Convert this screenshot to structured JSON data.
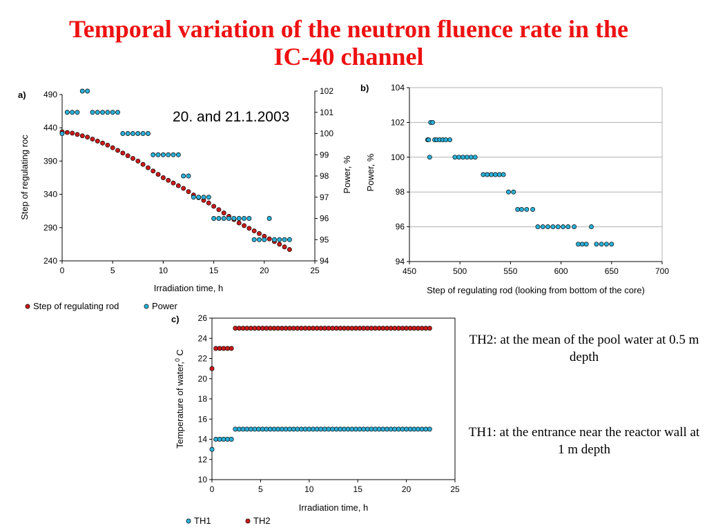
{
  "slide": {
    "title_line1": "Temporal variation of the neutron fluence rate in the",
    "title_line2": "IC-40 channel",
    "note_th2": "TH2: at the mean of the pool water at 0.5 m depth",
    "note_th1": "TH1: at the entrance near the reactor wall at 1 m depth"
  },
  "colors": {
    "red": "#cc1a1a",
    "blue": "#2bb0d8",
    "title": "#ee1111"
  },
  "chart_data": [
    {
      "id": "a",
      "panel_label": "a)",
      "type": "scatter",
      "annotation": "20. and 21.1.2003",
      "xlabel": "Irradiation time, h",
      "ylabel_left": "Step of regulating roc",
      "ylabel_right": "Power, %",
      "xlim": [
        0,
        25
      ],
      "ylim_left": [
        240,
        490
      ],
      "ylim_right": [
        94,
        102
      ],
      "xticks": [
        0,
        5,
        10,
        15,
        20,
        25
      ],
      "yticks_left": [
        240,
        290,
        340,
        390,
        440,
        490
      ],
      "yticks_right": [
        94,
        95,
        96,
        97,
        98,
        99,
        100,
        101,
        102
      ],
      "legend": [
        "Step of regulating rod",
        "Power"
      ],
      "legend_position": "bottom",
      "series": [
        {
          "name": "Step of regulating rod",
          "axis": "left",
          "color": "red",
          "x": [
            0,
            0.5,
            1,
            1.5,
            2,
            2.5,
            3,
            3.5,
            4,
            4.5,
            5,
            5.5,
            6,
            6.5,
            7,
            7.5,
            8,
            8.5,
            9,
            9.5,
            10,
            10.5,
            11,
            11.5,
            12,
            12.5,
            13,
            13.5,
            14,
            14.5,
            15,
            15.5,
            16,
            16.5,
            17,
            17.5,
            18,
            18.5,
            19,
            19.5,
            20,
            20.5,
            21,
            21.5,
            22,
            22.5
          ],
          "y": [
            434,
            433,
            432,
            430,
            428,
            426,
            423,
            420,
            417,
            414,
            410,
            406,
            402,
            398,
            394,
            390,
            385,
            380,
            375,
            370,
            365,
            361,
            357,
            353,
            349,
            344,
            339,
            335,
            331,
            327,
            322,
            317,
            312,
            307,
            302,
            297,
            293,
            289,
            285,
            281,
            277,
            273,
            269,
            265,
            261,
            257
          ]
        },
        {
          "name": "Power",
          "axis": "right",
          "color": "blue",
          "x": [
            0,
            0.5,
            1,
            1.5,
            2,
            2.5,
            3,
            3.5,
            4,
            4.5,
            5,
            5.5,
            6,
            6.5,
            7,
            7.5,
            8,
            8.5,
            9,
            9.5,
            10,
            10.5,
            11,
            11.5,
            12,
            12.5,
            13,
            13.5,
            14,
            14.5,
            15,
            15.5,
            16,
            16.5,
            17,
            17.5,
            18,
            18.5,
            19,
            19.5,
            20,
            20.5,
            21,
            21.5,
            22,
            22.5
          ],
          "y": [
            100,
            101,
            101,
            101,
            102,
            102,
            101,
            101,
            101,
            101,
            101,
            101,
            100,
            100,
            100,
            100,
            100,
            100,
            99,
            99,
            99,
            99,
            99,
            99,
            98,
            98,
            97,
            97,
            97,
            97,
            96,
            96,
            96,
            96,
            96,
            96,
            96,
            96,
            95,
            95,
            95,
            96,
            95,
            95,
            95,
            95
          ]
        }
      ]
    },
    {
      "id": "b",
      "panel_label": "b)",
      "type": "scatter",
      "xlabel": "Step of regulating rod (looking from bottom of the core)",
      "ylabel": "Power, %",
      "xlim": [
        450,
        700
      ],
      "ylim": [
        94,
        104
      ],
      "xticks": [
        450,
        500,
        550,
        600,
        650,
        700
      ],
      "yticks": [
        94,
        96,
        98,
        100,
        102,
        104
      ],
      "grid": true,
      "series": [
        {
          "color": "blue",
          "x": [
            468,
            469,
            470,
            471,
            473,
            475,
            477,
            480,
            483,
            486,
            490,
            495,
            499,
            503,
            507,
            511,
            515,
            523,
            527,
            531,
            535,
            539,
            543,
            548,
            553,
            557,
            561,
            566,
            572,
            577,
            582,
            587,
            592,
            597,
            602,
            607,
            613,
            617,
            621,
            625,
            630,
            635,
            640,
            645,
            650
          ],
          "y": [
            101,
            101,
            100,
            102,
            102,
            101,
            101,
            101,
            101,
            101,
            101,
            100,
            100,
            100,
            100,
            100,
            100,
            99,
            99,
            99,
            99,
            99,
            99,
            98,
            98,
            97,
            97,
            97,
            97,
            96,
            96,
            96,
            96,
            96,
            96,
            96,
            96,
            95,
            95,
            95,
            96,
            95,
            95,
            95,
            95
          ]
        }
      ]
    },
    {
      "id": "c",
      "panel_label": "c)",
      "type": "scatter",
      "xlabel": "Irradiation time, h",
      "ylabel": "Temperature of water, C",
      "ylabel_sup": "0",
      "xlim": [
        0,
        25
      ],
      "ylim": [
        10,
        26
      ],
      "xticks": [
        0,
        5,
        10,
        15,
        20,
        25
      ],
      "yticks": [
        10,
        12,
        14,
        16,
        18,
        20,
        22,
        24,
        26
      ],
      "legend": [
        "TH1",
        "TH2"
      ],
      "legend_position": "bottom",
      "series": [
        {
          "name": "TH1",
          "color": "blue",
          "x": [
            0,
            0.4,
            0.8,
            1.2,
            1.6,
            2,
            2.4,
            2.8,
            3.2,
            3.6,
            4,
            4.4,
            4.8,
            5.2,
            5.6,
            6,
            6.4,
            6.8,
            7.2,
            7.6,
            8,
            8.4,
            8.8,
            9.2,
            9.6,
            10,
            10.4,
            10.8,
            11.2,
            11.6,
            12,
            12.4,
            12.8,
            13.2,
            13.6,
            14,
            14.4,
            14.8,
            15.2,
            15.6,
            16,
            16.4,
            16.8,
            17.2,
            17.6,
            18,
            18.4,
            18.8,
            19.2,
            19.6,
            20,
            20.4,
            20.8,
            21.2,
            21.6,
            22,
            22.4
          ],
          "y": [
            13,
            14,
            14,
            14,
            14,
            14,
            15,
            15,
            15,
            15,
            15,
            15,
            15,
            15,
            15,
            15,
            15,
            15,
            15,
            15,
            15,
            15,
            15,
            15,
            15,
            15,
            15,
            15,
            15,
            15,
            15,
            15,
            15,
            15,
            15,
            15,
            15,
            15,
            15,
            15,
            15,
            15,
            15,
            15,
            15,
            15,
            15,
            15,
            15,
            15,
            15,
            15,
            15,
            15,
            15,
            15,
            15
          ]
        },
        {
          "name": "TH2",
          "color": "red",
          "x": [
            0,
            0.4,
            0.8,
            1.2,
            1.6,
            2,
            2.4,
            2.8,
            3.2,
            3.6,
            4,
            4.4,
            4.8,
            5.2,
            5.6,
            6,
            6.4,
            6.8,
            7.2,
            7.6,
            8,
            8.4,
            8.8,
            9.2,
            9.6,
            10,
            10.4,
            10.8,
            11.2,
            11.6,
            12,
            12.4,
            12.8,
            13.2,
            13.6,
            14,
            14.4,
            14.8,
            15.2,
            15.6,
            16,
            16.4,
            16.8,
            17.2,
            17.6,
            18,
            18.4,
            18.8,
            19.2,
            19.6,
            20,
            20.4,
            20.8,
            21.2,
            21.6,
            22,
            22.4
          ],
          "y": [
            21,
            23,
            23,
            23,
            23,
            23,
            25,
            25,
            25,
            25,
            25,
            25,
            25,
            25,
            25,
            25,
            25,
            25,
            25,
            25,
            25,
            25,
            25,
            25,
            25,
            25,
            25,
            25,
            25,
            25,
            25,
            25,
            25,
            25,
            25,
            25,
            25,
            25,
            25,
            25,
            25,
            25,
            25,
            25,
            25,
            25,
            25,
            25,
            25,
            25,
            25,
            25,
            25,
            25,
            25,
            25,
            25
          ]
        }
      ]
    }
  ]
}
